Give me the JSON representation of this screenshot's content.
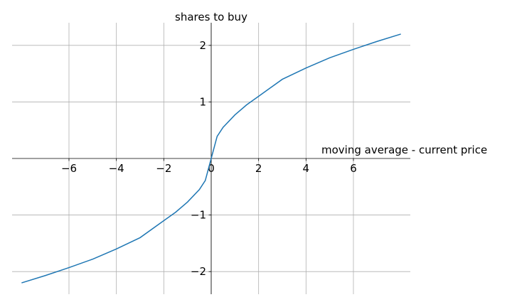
{
  "chart_data": {
    "type": "line",
    "title": "",
    "xlabel": "moving average - current price",
    "ylabel": "shares to buy",
    "xlim": [
      -8.4,
      8.4
    ],
    "ylim": [
      -2.4,
      2.4
    ],
    "xticks": [
      -6,
      -4,
      -2,
      0,
      2,
      4,
      6
    ],
    "yticks": [
      -2,
      -1,
      1,
      2
    ],
    "xtick_labels": [
      "−6",
      "−4",
      "−2",
      "0",
      "2",
      "4",
      "6"
    ],
    "ytick_labels": [
      "−2",
      "−1",
      "1",
      "2"
    ],
    "grid": true,
    "spines": "centered at origin",
    "line_color": "#1f77b4",
    "grid_color": "#b0b0b0",
    "series": [
      {
        "x": [
          -8,
          -7,
          -6,
          -5,
          -4,
          -3,
          -2,
          -1.5,
          -1,
          -0.5,
          -0.25,
          0,
          0.25,
          0.5,
          1,
          1.5,
          2,
          3,
          4,
          5,
          6,
          7,
          8
        ],
        "y": [
          -2.2,
          -2.07,
          -1.93,
          -1.78,
          -1.6,
          -1.4,
          -1.1,
          -0.95,
          -0.77,
          -0.55,
          -0.39,
          0,
          0.39,
          0.55,
          0.77,
          0.95,
          1.1,
          1.4,
          1.6,
          1.78,
          1.93,
          2.07,
          2.2
        ]
      }
    ]
  }
}
